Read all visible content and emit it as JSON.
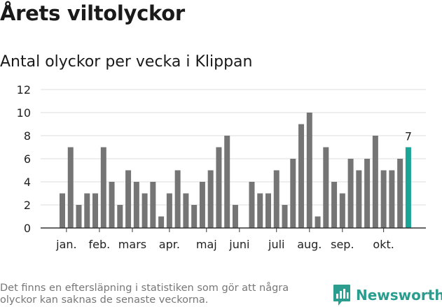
{
  "title": "Årets viltolyckor",
  "subtitle": "Antal olyckor per vecka i Klippan",
  "footnote": "Det finns en eftersläpning i statistiken som gör att några olyckor kan saknas de senaste veckorna.",
  "brand": {
    "name": "Newsworthy",
    "icon": "newsworthy-logo-icon"
  },
  "colors": {
    "bar": "#757575",
    "highlight": "#1aa597",
    "grid": "#dddddd",
    "axis": "#333333",
    "text": "#222222"
  },
  "chart_data": {
    "type": "bar",
    "title": "Årets viltolyckor",
    "subtitle": "Antal olyckor per vecka i Klippan",
    "xlabel": "",
    "ylabel": "",
    "ylim": [
      0,
      12
    ],
    "yticks": [
      0,
      2,
      4,
      6,
      8,
      10,
      12
    ],
    "grid": true,
    "weeks": [
      1,
      2,
      3,
      4,
      5,
      6,
      7,
      8,
      9,
      10,
      11,
      12,
      13,
      14,
      15,
      16,
      17,
      18,
      19,
      20,
      21,
      22,
      23,
      24,
      25,
      26,
      27,
      28,
      29,
      30,
      31,
      32,
      33,
      34,
      35,
      36,
      37,
      38,
      39,
      40,
      41,
      42,
      43
    ],
    "values": [
      3,
      7,
      2,
      3,
      3,
      7,
      4,
      2,
      5,
      4,
      3,
      4,
      1,
      3,
      5,
      3,
      2,
      4,
      5,
      7,
      8,
      2,
      null,
      4,
      3,
      3,
      5,
      2,
      6,
      9,
      10,
      1,
      7,
      4,
      3,
      6,
      5,
      6,
      8,
      5,
      5,
      6,
      7
    ],
    "highlight_index": 42,
    "highlight_label": "7",
    "month_labels": [
      {
        "label": "jan.",
        "week": 1.5
      },
      {
        "label": "feb.",
        "week": 5.5
      },
      {
        "label": "mars",
        "week": 9.5
      },
      {
        "label": "apr.",
        "week": 14
      },
      {
        "label": "maj",
        "week": 18.5
      },
      {
        "label": "juni",
        "week": 22.5
      },
      {
        "label": "juli",
        "week": 27
      },
      {
        "label": "aug.",
        "week": 31
      },
      {
        "label": "sep.",
        "week": 35
      },
      {
        "label": "okt.",
        "week": 40
      }
    ]
  }
}
